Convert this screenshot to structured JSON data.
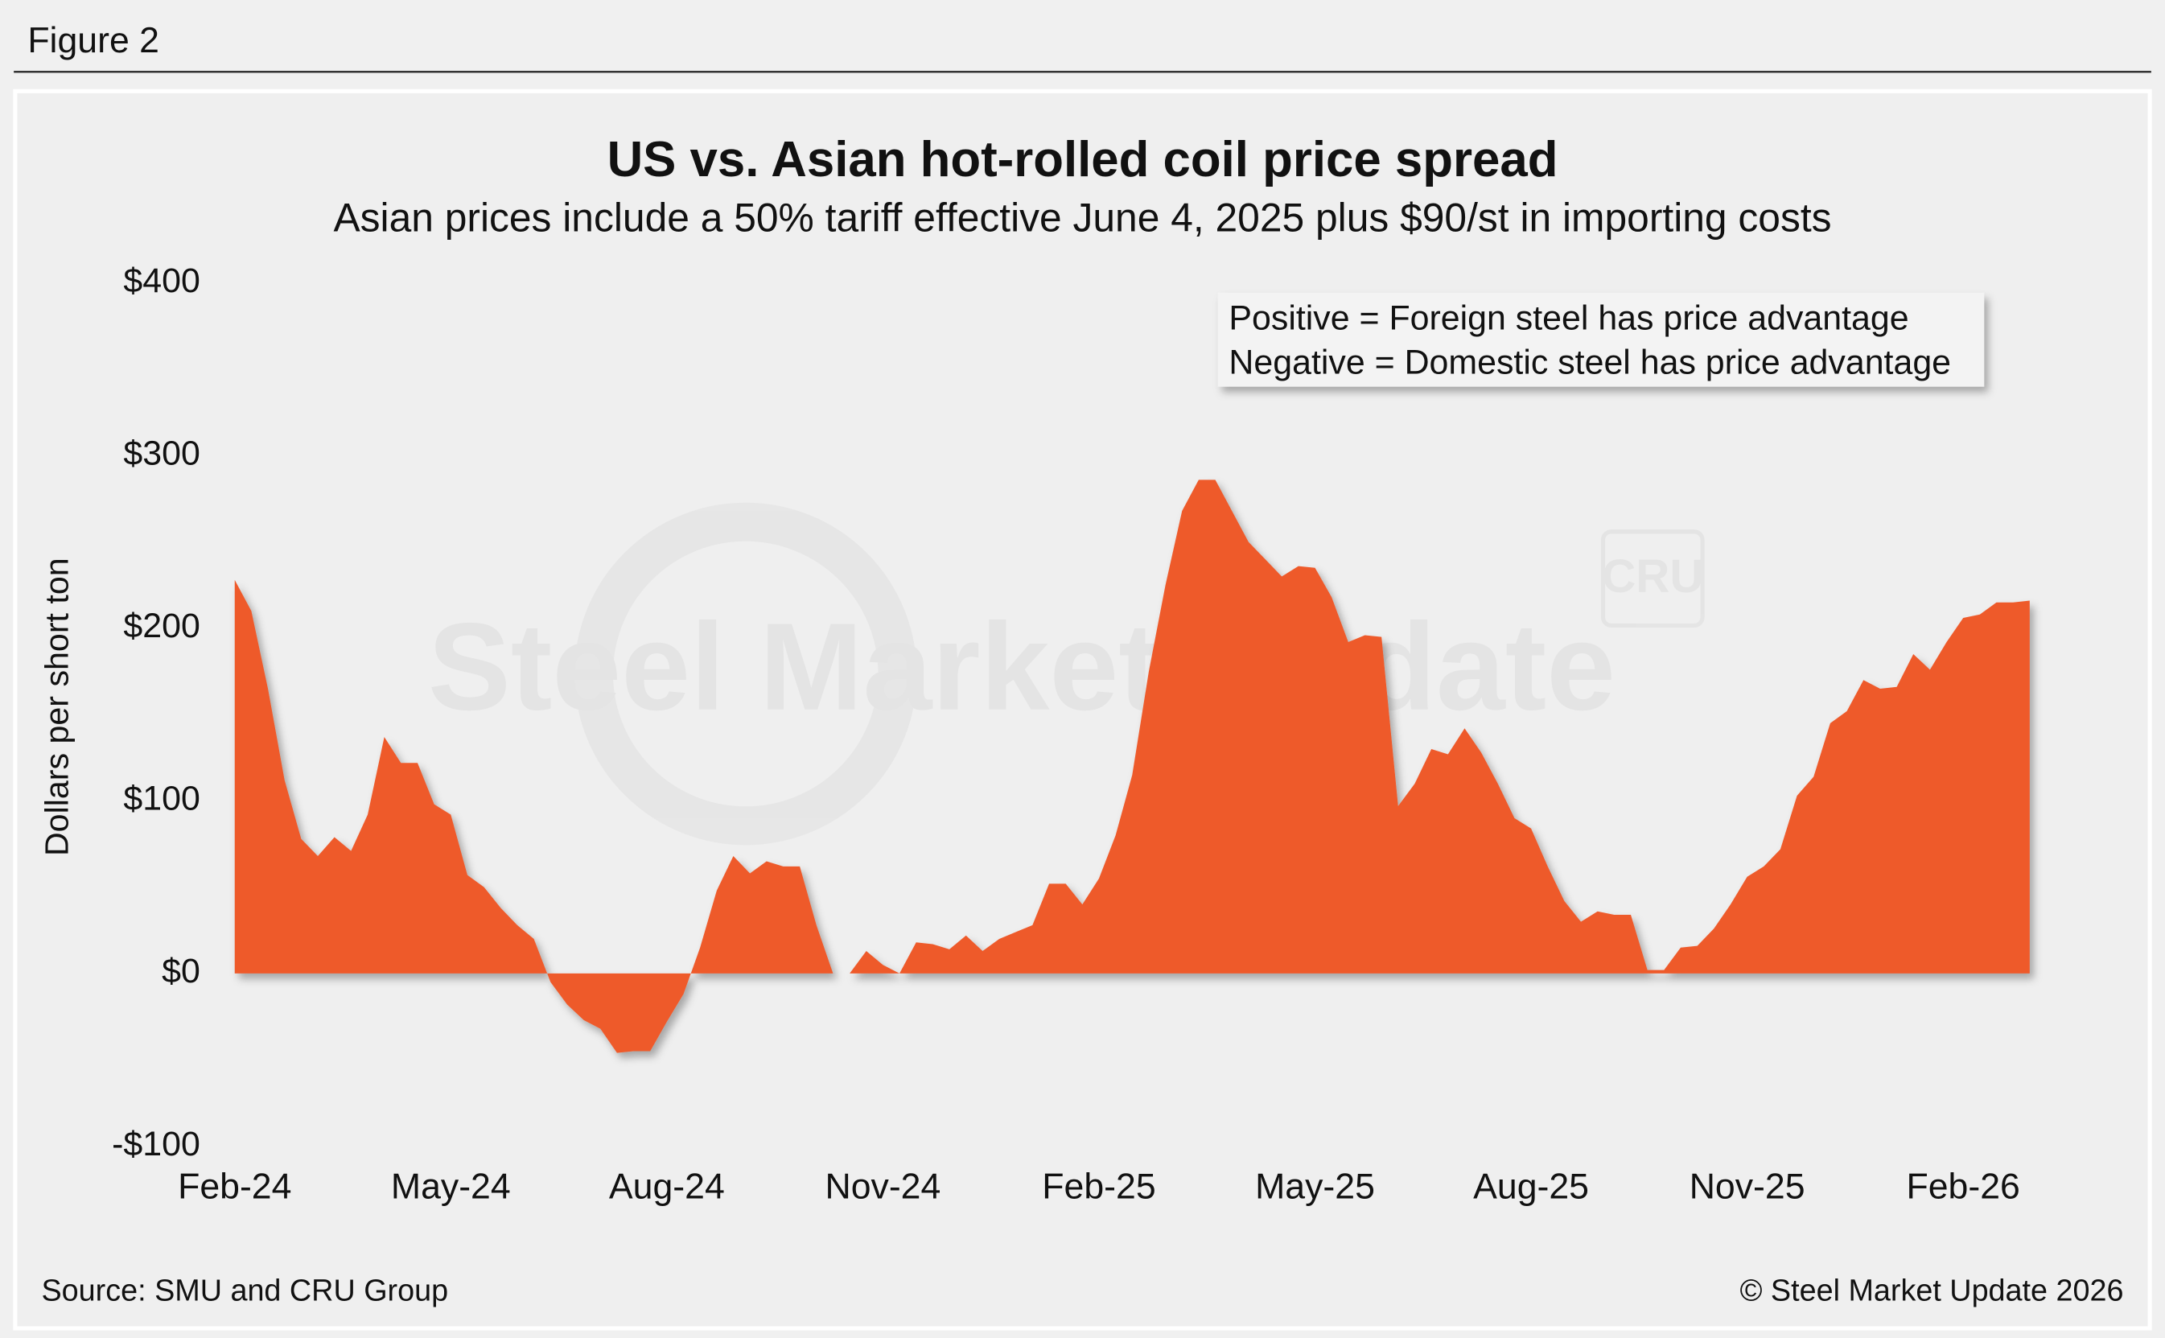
{
  "header": "Figure 2",
  "chart_data": {
    "type": "area",
    "title": "US vs. Asian hot-rolled coil price spread",
    "subtitle": "Asian prices include a 50% tariff effective June 4, 2025 plus $90/st in importing costs",
    "y_label": "Dollars per short ton",
    "annotations": [
      "Positive = Foreign steel has price advantage",
      "Negative = Domestic steel has price advantage"
    ],
    "watermark": [
      "Steel Market Update",
      "CRU"
    ],
    "source": "Source: SMU and CRU Group",
    "copyright": "© Steel Market Update 2026",
    "color": "#ee5a2b",
    "ylim": [
      -100,
      400
    ],
    "yticks": [
      {
        "value": -100,
        "label": "-$100"
      },
      {
        "value": 0,
        "label": "$0"
      },
      {
        "value": 100,
        "label": "$100"
      },
      {
        "value": 200,
        "label": "$200"
      },
      {
        "value": 300,
        "label": "$300"
      },
      {
        "value": 400,
        "label": "$400"
      }
    ],
    "categories": [
      "Feb-24",
      null,
      null,
      null,
      null,
      null,
      null,
      null,
      null,
      null,
      null,
      null,
      null,
      "May-24",
      null,
      null,
      null,
      null,
      null,
      null,
      null,
      null,
      null,
      null,
      null,
      null,
      "Aug-24",
      null,
      null,
      null,
      null,
      null,
      null,
      null,
      null,
      null,
      null,
      null,
      null,
      "Nov-24",
      null,
      null,
      null,
      null,
      null,
      null,
      null,
      null,
      null,
      null,
      null,
      null,
      "Feb-25",
      null,
      null,
      null,
      null,
      null,
      null,
      null,
      null,
      null,
      null,
      null,
      null,
      "May-25",
      null,
      null,
      null,
      null,
      null,
      null,
      null,
      null,
      null,
      null,
      null,
      null,
      "Aug-25",
      null,
      null,
      null,
      null,
      null,
      null,
      null,
      null,
      null,
      null,
      null,
      null,
      "Nov-25",
      null,
      null,
      null,
      null,
      null,
      null,
      null,
      null,
      null,
      null,
      null,
      null,
      "Feb-26",
      null,
      null,
      null,
      null
    ],
    "values": [
      228,
      210,
      165,
      112,
      78,
      68,
      79,
      71,
      92,
      137,
      122,
      122,
      98,
      92,
      57,
      50,
      38,
      28,
      20,
      -5,
      -18,
      -27,
      -32,
      -46,
      -45,
      -45,
      -28,
      -12,
      15,
      48,
      68,
      58,
      65,
      62,
      62,
      28,
      0,
      0,
      13,
      5,
      0,
      18,
      17,
      14,
      22,
      13,
      20,
      24,
      28,
      52,
      52,
      40,
      55,
      80,
      115,
      175,
      225,
      268,
      286,
      286,
      268,
      250,
      240,
      230,
      236,
      235,
      218,
      192,
      196,
      195,
      97,
      110,
      130,
      127,
      142,
      128,
      110,
      90,
      84,
      62,
      42,
      30,
      36,
      34,
      34,
      2,
      2,
      15,
      16,
      26,
      40,
      56,
      62,
      72,
      103,
      114,
      145,
      152,
      170,
      165,
      166,
      185,
      176,
      192,
      206,
      208,
      215,
      215,
      216
    ]
  }
}
